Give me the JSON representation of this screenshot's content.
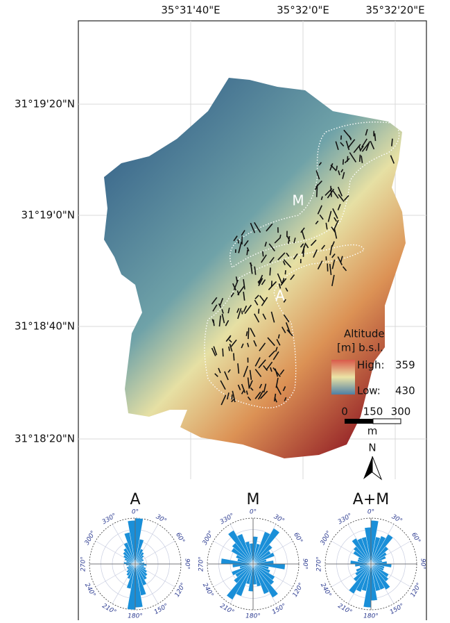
{
  "map": {
    "lon_labels": [
      "35°31'40\"E",
      "35°32'0\"E",
      "35°32'20\"E"
    ],
    "lat_labels": [
      "31°19'20\"N",
      "31°19'0\"N",
      "31°18'40\"N",
      "31°18'20\"N"
    ],
    "zone_labels": [
      "M",
      "A"
    ],
    "legend": {
      "title": "Altitude",
      "unit": "[m] b.s.l.",
      "high_label": "High:",
      "high_value": 359,
      "low_label": "Low:",
      "low_value": 430
    },
    "scale": {
      "ticks": [
        0,
        150,
        300
      ],
      "unit": "m"
    },
    "north": "N"
  },
  "roses": [
    {
      "title": "A",
      "angle_labels": [
        "0°",
        "30°",
        "60°",
        "90°",
        "120°",
        "150°",
        "180°",
        "210°",
        "240°",
        "270°",
        "300°",
        "330°"
      ],
      "values": [
        1.0,
        0.55,
        0.35,
        0.3,
        0.25,
        0.2,
        0.2,
        0.15,
        0.2,
        0.25,
        0.2,
        0.25,
        0.3,
        0.35,
        0.4,
        0.5,
        0.7,
        0.95
      ]
    },
    {
      "title": "M",
      "angle_labels": [
        "0°",
        "30°",
        "60°",
        "90°",
        "120°",
        "150°",
        "180°",
        "210°",
        "240°",
        "270°",
        "300°",
        "330°"
      ],
      "values": [
        0.6,
        0.45,
        0.75,
        0.9,
        0.55,
        0.45,
        0.5,
        0.3,
        0.45,
        0.7,
        0.35,
        0.4,
        0.55,
        0.6,
        0.85,
        0.7,
        0.5,
        0.45
      ]
    },
    {
      "title": "A+M",
      "angle_labels": [
        "0°",
        "30°",
        "60°",
        "90°",
        "120°",
        "150°",
        "180°",
        "210°",
        "240°",
        "270°",
        "300°",
        "330°"
      ],
      "values": [
        0.95,
        0.6,
        0.65,
        0.75,
        0.5,
        0.4,
        0.35,
        0.25,
        0.35,
        0.45,
        0.3,
        0.3,
        0.45,
        0.5,
        0.65,
        0.6,
        0.6,
        0.8
      ]
    }
  ]
}
